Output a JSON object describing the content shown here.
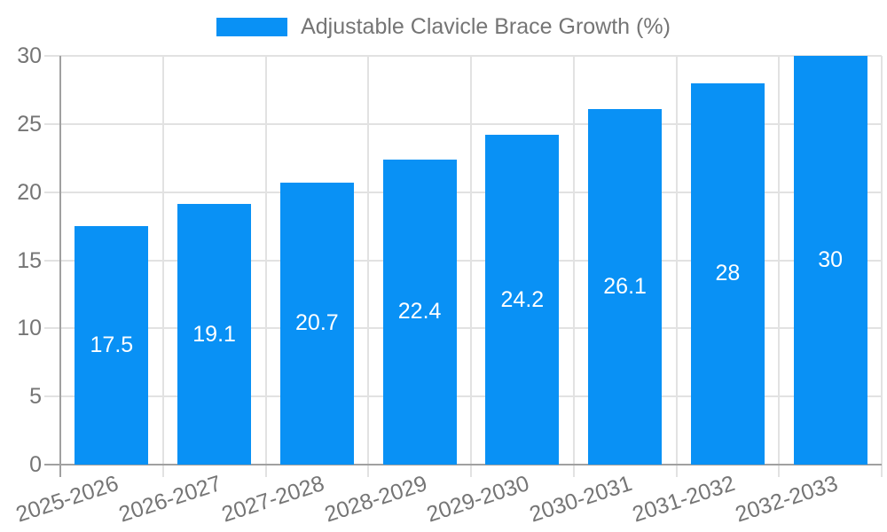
{
  "chart_data": {
    "type": "bar",
    "title": "Adjustable Clavicle Brace Growth (%)",
    "categories": [
      "2025-2026",
      "2026-2027",
      "2027-2028",
      "2028-2029",
      "2029-2030",
      "2030-2031",
      "2031-2032",
      "2032-2033"
    ],
    "values": [
      17.5,
      19.1,
      20.7,
      22.4,
      24.2,
      26.1,
      28,
      30
    ],
    "value_labels": [
      "17.5",
      "19.1",
      "20.7",
      "22.4",
      "24.2",
      "26.1",
      "28",
      "30"
    ],
    "xlabel": "",
    "ylabel": "",
    "ylim": [
      0,
      30
    ],
    "yticks": [
      0,
      5,
      10,
      15,
      20,
      25,
      30
    ],
    "grid": true,
    "legend_position": "top",
    "x_label_rotation_deg": -18,
    "colors": {
      "bar": "#0991f5",
      "value_label": "#ffffff",
      "axis_text": "#757575",
      "gridline": "#e2e2e2",
      "axis_line": "#a0a0a0",
      "background": "#ffffff"
    }
  }
}
